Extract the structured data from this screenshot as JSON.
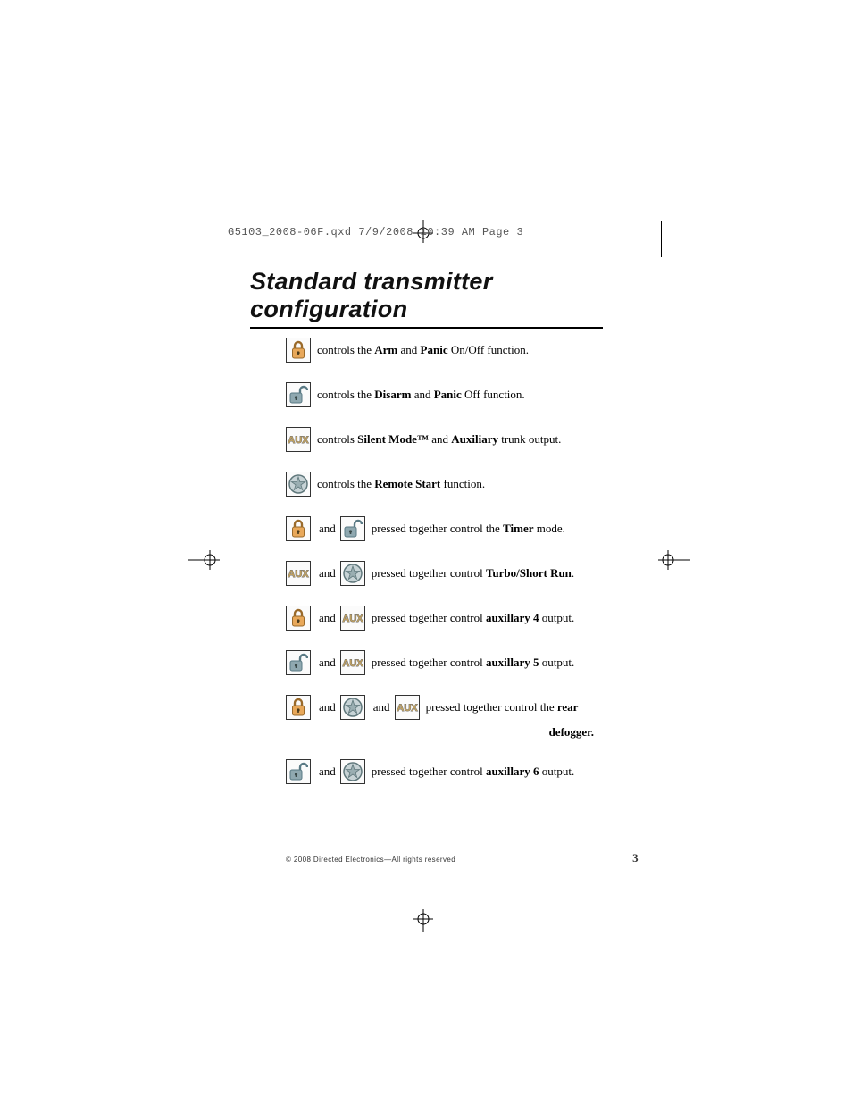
{
  "header": "G5103_2008-06F.qxd  7/9/2008  10:39 AM  Page 3",
  "title": "Standard transmitter configuration",
  "icons": {
    "lock": {
      "fill": "#e8a85a",
      "stroke": "#9a6a2a"
    },
    "unlock": {
      "fill": "#8fa8b0",
      "stroke": "#5a7a85"
    },
    "aux": {
      "text": "AUX",
      "fill": "#bfa060",
      "stroke": "#6e6e6e"
    },
    "star": {
      "fill": "#9aaeb2",
      "stroke": "#60787c",
      "circle": "#c7d3d6"
    }
  },
  "rows": [
    {
      "icons": [
        "lock"
      ],
      "parts": [
        "controls the ",
        [
          "b",
          "Arm"
        ],
        " and ",
        [
          "b",
          "Panic"
        ],
        " On/Off function."
      ]
    },
    {
      "icons": [
        "unlock"
      ],
      "parts": [
        "controls the ",
        [
          "b",
          "Disarm"
        ],
        " and ",
        [
          "b",
          "Panic"
        ],
        " Off function."
      ]
    },
    {
      "icons": [
        "aux"
      ],
      "parts": [
        "controls ",
        [
          "b",
          "Silent Mode™"
        ],
        " and ",
        [
          "b",
          "Auxiliary"
        ],
        " trunk output."
      ]
    },
    {
      "icons": [
        "star"
      ],
      "parts": [
        "controls the ",
        [
          "b",
          "Remote Start"
        ],
        " function."
      ]
    },
    {
      "icons": [
        "lock",
        "unlock"
      ],
      "parts": [
        "pressed together control the ",
        [
          "b",
          "Timer"
        ],
        " mode."
      ]
    },
    {
      "icons": [
        "aux",
        "star"
      ],
      "parts": [
        "pressed together control ",
        [
          "b",
          "Turbo/Short Run"
        ],
        "."
      ]
    },
    {
      "icons": [
        "lock",
        "aux"
      ],
      "parts": [
        "pressed together control ",
        [
          "b",
          "auxillary 4"
        ],
        " output."
      ]
    },
    {
      "icons": [
        "unlock",
        "aux"
      ],
      "parts": [
        "pressed together control ",
        [
          "b",
          "auxillary 5"
        ],
        " output."
      ]
    },
    {
      "icons": [
        "lock",
        "star",
        "aux"
      ],
      "parts": [
        "pressed together control the ",
        [
          "b",
          "rear"
        ]
      ],
      "tail": "defogger."
    },
    {
      "icons": [
        "unlock",
        "star"
      ],
      "parts": [
        "pressed together control ",
        [
          "b",
          "auxillary 6"
        ],
        " output."
      ]
    }
  ],
  "joiner": "and",
  "footer": "© 2008 Directed Electronics—All rights reserved",
  "page_number": "3"
}
